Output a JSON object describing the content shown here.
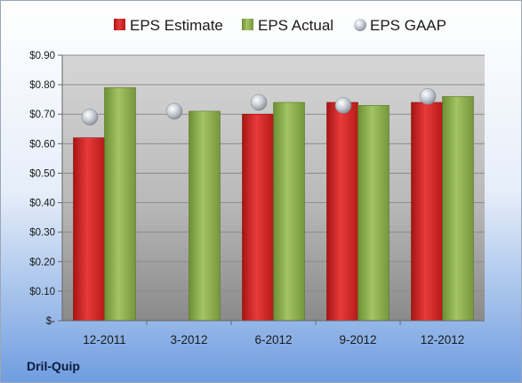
{
  "company": "Dril-Quip",
  "colors": {
    "estimate": "#d42a2a",
    "actual": "#8db04e",
    "gaap": "#c8cdd4"
  },
  "chart_data": {
    "type": "bar",
    "categories": [
      "12-2011",
      "3-2012",
      "6-2012",
      "9-2012",
      "12-2012"
    ],
    "series": [
      {
        "name": "EPS Estimate",
        "kind": "bar",
        "values": [
          0.62,
          null,
          0.7,
          0.74,
          0.74
        ]
      },
      {
        "name": "EPS Actual",
        "kind": "bar",
        "values": [
          0.79,
          0.71,
          0.74,
          0.73,
          0.76
        ]
      },
      {
        "name": "EPS GAAP",
        "kind": "marker",
        "values": [
          0.69,
          0.71,
          0.74,
          0.73,
          0.76
        ]
      }
    ],
    "ylim": [
      0,
      0.9
    ],
    "ytick_values": [
      0,
      0.1,
      0.2,
      0.3,
      0.4,
      0.5,
      0.6,
      0.7,
      0.8,
      0.9
    ],
    "ytick_labels": [
      "$-",
      "$0.10",
      "$0.20",
      "$0.30",
      "$0.40",
      "$0.50",
      "$0.60",
      "$0.70",
      "$0.80",
      "$0.90"
    ],
    "legend_position": "top",
    "grid": true
  }
}
